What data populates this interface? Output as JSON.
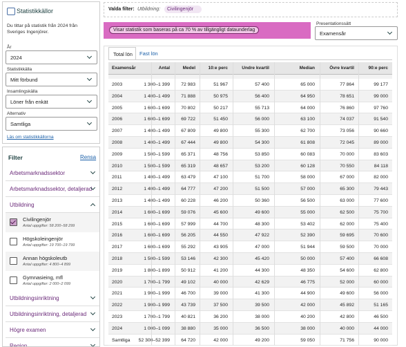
{
  "sources": {
    "title": "Statistikkällor",
    "intro": "Du tittar på statistik från 2024 från Sveriges Ingenjörer.",
    "fields": [
      {
        "label": "År",
        "value": "2024"
      },
      {
        "label": "Statistikkälla",
        "value": "Mitt förbund"
      },
      {
        "label": "Insamlingskälla",
        "value": "Löner från enkät"
      },
      {
        "label": "Alternativ",
        "value": "Samtliga"
      }
    ],
    "link": "Läs om statistikkällorna"
  },
  "filter": {
    "title": "Filter",
    "clear": "Rensa",
    "sections_before": [
      "Arbetsmarknadssektor",
      "Arbetsmarknadssektor, detaljerad"
    ],
    "open_section": "Utbildning",
    "options": [
      {
        "label": "Civilingenjör",
        "count": "Antal uppgifter: 58 200–58 299",
        "checked": true
      },
      {
        "label": "Högskoleingenjör",
        "count": "Antal uppgifter: 19 700–19 799",
        "checked": false
      },
      {
        "label": "Annan högskoleutb",
        "count": "Antal uppgifter: 4 800–4 899",
        "checked": false
      },
      {
        "label": "Gymnasieing, mfl",
        "count": "Antal uppgifter: 2 000–2 099",
        "checked": false
      }
    ],
    "sections_after": [
      "Utbildningsinriktning",
      "Utbildningsinriktning, detaljerad",
      "Högre examen",
      "Region"
    ]
  },
  "selected": {
    "label": "Valda filter:",
    "key": "Utbildning:",
    "chip": "Civilingenjör"
  },
  "notice": "Visar statistik som baseras på ca 70 % av tillgängligt dataunderlag",
  "presentation": {
    "label": "Presentationssätt",
    "value": "Examensår"
  },
  "tabs": [
    "Total lön",
    "Fast lön"
  ],
  "table": {
    "header": [
      "Examensår",
      "Antal",
      "Medel",
      "10:e perc",
      "Undre kvartil",
      "Median",
      "Övre kvartil",
      "90:e perc"
    ],
    "rows": [
      [
        "2003",
        "1 300–1 399",
        "72 983",
        "51 967",
        "57 400",
        "65 000",
        "77 864",
        "99 177"
      ],
      [
        "2004",
        "1 400–1 499",
        "71 888",
        "50 975",
        "56 400",
        "64 950",
        "78 651",
        "99 000"
      ],
      [
        "2005",
        "1 600–1 699",
        "70 802",
        "50 217",
        "55 713",
        "64 000",
        "76 860",
        "97 760"
      ],
      [
        "2006",
        "1 600–1 699",
        "69 722",
        "51 450",
        "56 000",
        "63 100",
        "74 037",
        "91 540"
      ],
      [
        "2007",
        "1 400–1 499",
        "67 809",
        "49 800",
        "55 300",
        "62 700",
        "73 056",
        "90 660"
      ],
      [
        "2008",
        "1 400–1 499",
        "67 444",
        "49 800",
        "54 300",
        "61 808",
        "72 045",
        "89 000"
      ],
      [
        "2009",
        "1 500–1 599",
        "65 371",
        "48 756",
        "53 850",
        "60 083",
        "70 000",
        "83 603"
      ],
      [
        "2010",
        "1 500–1 599",
        "65 319",
        "48 657",
        "53 200",
        "60 128",
        "70 550",
        "84 118"
      ],
      [
        "2011",
        "1 400–1 499",
        "63 479",
        "47 100",
        "51 700",
        "58 000",
        "67 000",
        "82 000"
      ],
      [
        "2012",
        "1 400–1 499",
        "64 777",
        "47 200",
        "51 500",
        "57 000",
        "65 300",
        "79 443"
      ],
      [
        "2013",
        "1 400–1 499",
        "60 228",
        "46 200",
        "50 360",
        "56 500",
        "63 000",
        "77 600"
      ],
      [
        "2014",
        "1 600–1 699",
        "59 076",
        "45 600",
        "49 600",
        "55 000",
        "62 500",
        "75 700"
      ],
      [
        "2015",
        "1 600–1 699",
        "57 999",
        "44 700",
        "48 300",
        "53 402",
        "62 000",
        "75 400"
      ],
      [
        "2016",
        "1 600–1 699",
        "56 205",
        "44 550",
        "47 922",
        "52 390",
        "59 695",
        "70 600"
      ],
      [
        "2017",
        "1 600–1 699",
        "55 292",
        "43 905",
        "47 000",
        "51 944",
        "59 500",
        "70 000"
      ],
      [
        "2018",
        "1 500–1 599",
        "53 146",
        "42 300",
        "45 420",
        "50 000",
        "57 400",
        "66 608"
      ],
      [
        "2019",
        "1 800–1 899",
        "50 912",
        "41 200",
        "44 300",
        "48 350",
        "54 600",
        "62 800"
      ],
      [
        "2020",
        "1 700–1 799",
        "49 102",
        "40 000",
        "42 629",
        "46 775",
        "52 000",
        "60 000"
      ],
      [
        "2021",
        "1 900–1 999",
        "46 700",
        "39 000",
        "41 300",
        "44 900",
        "49 600",
        "56 000"
      ],
      [
        "2022",
        "1 900–1 999",
        "43 739",
        "37 500",
        "39 500",
        "42 000",
        "45 892",
        "51 165"
      ],
      [
        "2023",
        "1 700–1 799",
        "40 821",
        "36 200",
        "38 000",
        "40 200",
        "42 800",
        "46 500"
      ],
      [
        "2024",
        "1 000–1 099",
        "38 880",
        "35 000",
        "36 500",
        "38 000",
        "40 000",
        "44 000"
      ],
      [
        "Samtliga",
        "52 300–52 399",
        "64 720",
        "42 000",
        "49 200",
        "59 050",
        "71 756",
        "90 000"
      ]
    ]
  }
}
